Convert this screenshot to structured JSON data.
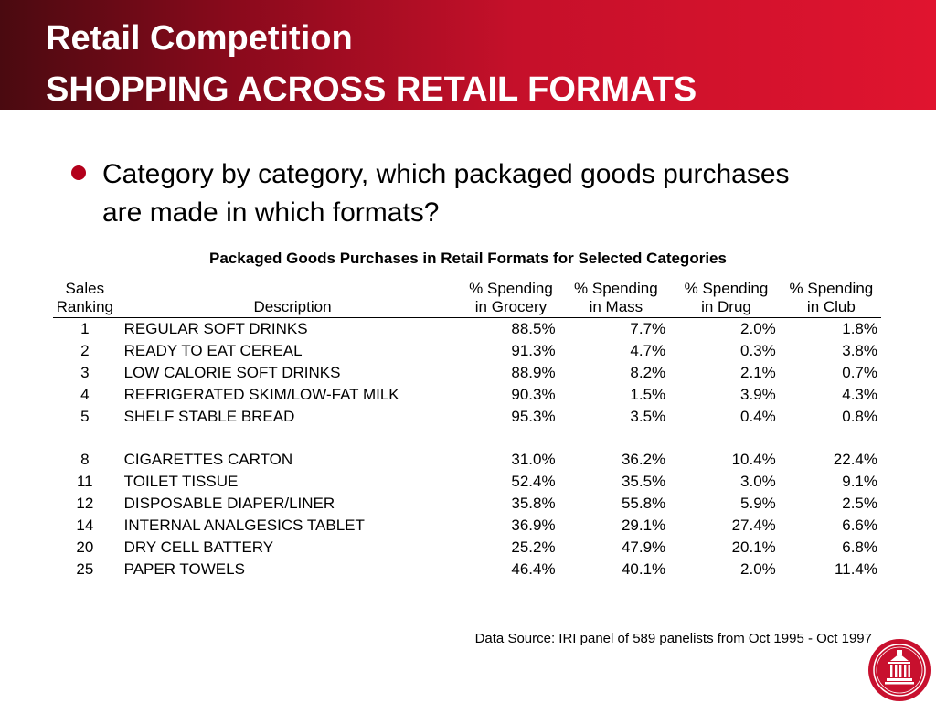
{
  "header": {
    "title_line1": "Retail Competition",
    "title_line2": "SHOPPING ACROSS RETAIL FORMATS"
  },
  "bullet": {
    "text": "Category by category, which packaged goods purchases are made in which formats?"
  },
  "table": {
    "title": "Packaged Goods Purchases in Retail Formats for Selected Categories",
    "headers": {
      "rank_line1": "Sales",
      "rank_line2": "Ranking",
      "description": "Description",
      "grocery_line1": "% Spending",
      "grocery_line2": "in Grocery",
      "mass_line1": "% Spending",
      "mass_line2": "in Mass",
      "drug_line1": "% Spending",
      "drug_line2": "in Drug",
      "club_line1": "% Spending",
      "club_line2": "in Club"
    },
    "rows": [
      {
        "rank": "1",
        "description": "REGULAR SOFT DRINKS",
        "grocery": "88.5%",
        "mass": "7.7%",
        "drug": "2.0%",
        "club": "1.8%"
      },
      {
        "rank": "2",
        "description": "READY TO EAT CEREAL",
        "grocery": "91.3%",
        "mass": "4.7%",
        "drug": "0.3%",
        "club": "3.8%"
      },
      {
        "rank": "3",
        "description": "LOW CALORIE SOFT DRINKS",
        "grocery": "88.9%",
        "mass": "8.2%",
        "drug": "2.1%",
        "club": "0.7%"
      },
      {
        "rank": "4",
        "description": "REFRIGERATED SKIM/LOW-FAT MILK",
        "grocery": "90.3%",
        "mass": "1.5%",
        "drug": "3.9%",
        "club": "4.3%"
      },
      {
        "rank": "5",
        "description": "SHELF STABLE BREAD",
        "grocery": "95.3%",
        "mass": "3.5%",
        "drug": "0.4%",
        "club": "0.8%"
      },
      {
        "rank": "8",
        "description": "CIGARETTES CARTON",
        "grocery": "31.0%",
        "mass": "36.2%",
        "drug": "10.4%",
        "club": "22.4%"
      },
      {
        "rank": "11",
        "description": "TOILET TISSUE",
        "grocery": "52.4%",
        "mass": "35.5%",
        "drug": "3.0%",
        "club": "9.1%"
      },
      {
        "rank": "12",
        "description": "DISPOSABLE DIAPER/LINER",
        "grocery": "35.8%",
        "mass": "55.8%",
        "drug": "5.9%",
        "club": "2.5%"
      },
      {
        "rank": "14",
        "description": "INTERNAL ANALGESICS TABLET",
        "grocery": "36.9%",
        "mass": "29.1%",
        "drug": "27.4%",
        "club": "6.6%"
      },
      {
        "rank": "20",
        "description": "DRY CELL BATTERY",
        "grocery": "25.2%",
        "mass": "47.9%",
        "drug": "20.1%",
        "club": "6.8%"
      },
      {
        "rank": "25",
        "description": "PAPER TOWELS",
        "grocery": "46.4%",
        "mass": "40.1%",
        "drug": "2.0%",
        "club": "11.4%"
      }
    ]
  },
  "footer": {
    "source": "Data Source: IRI panel of 589 panelists from Oct 1995 - Oct 1997"
  },
  "colors": {
    "header_dark": "#4a0a10",
    "header_bright": "#e0142f",
    "bullet": "#b3001b",
    "logo": "#c8102e"
  },
  "icons": {
    "logo": "university-seal-icon",
    "bullet": "bullet-dot-icon"
  }
}
